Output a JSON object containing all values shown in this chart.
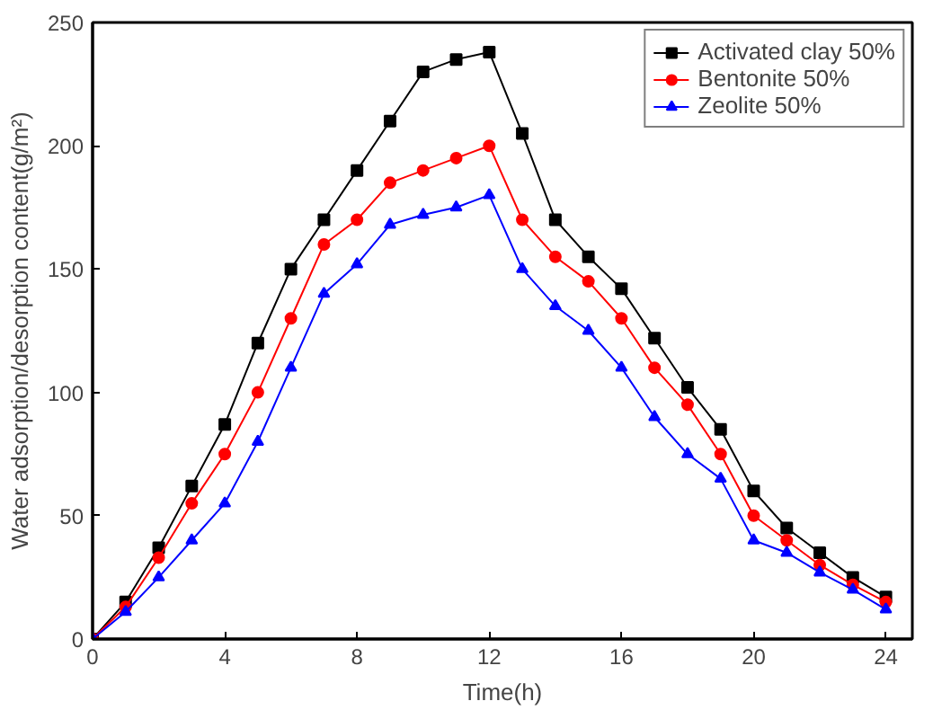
{
  "chart_data": {
    "type": "line",
    "xlabel": "Time(h)",
    "ylabel": "Water adsorption/desorption content(g/m²)",
    "x": [
      0,
      1,
      2,
      3,
      4,
      5,
      6,
      7,
      8,
      9,
      10,
      11,
      12,
      13,
      14,
      15,
      16,
      17,
      18,
      19,
      20,
      21,
      22,
      23,
      24
    ],
    "series": [
      {
        "name": "Activated clay 50%",
        "color": "#000000",
        "marker": "square",
        "values": [
          0,
          15,
          37,
          62,
          87,
          120,
          150,
          170,
          190,
          210,
          230,
          235,
          238,
          205,
          170,
          155,
          142,
          122,
          102,
          85,
          60,
          45,
          35,
          25,
          17
        ]
      },
      {
        "name": "Bentonite 50%",
        "color": "#ff0000",
        "marker": "circle",
        "values": [
          0,
          13,
          33,
          55,
          75,
          100,
          130,
          160,
          170,
          185,
          190,
          195,
          200,
          170,
          155,
          145,
          130,
          110,
          95,
          75,
          50,
          40,
          30,
          22,
          15
        ]
      },
      {
        "name": "Zeolite 50%",
        "color": "#0000ff",
        "marker": "triangle",
        "values": [
          0,
          11,
          25,
          40,
          55,
          80,
          110,
          140,
          152,
          168,
          172,
          175,
          180,
          150,
          135,
          125,
          110,
          90,
          75,
          65,
          40,
          35,
          27,
          20,
          12
        ]
      }
    ],
    "xlim": [
      0,
      24.8
    ],
    "xticks": [
      0,
      4,
      8,
      12,
      16,
      20,
      24
    ],
    "ylim": [
      0,
      250
    ],
    "yticks": [
      0,
      50,
      100,
      150,
      200,
      250
    ],
    "grid": false,
    "legend": "top right",
    "line_style": "solid"
  }
}
